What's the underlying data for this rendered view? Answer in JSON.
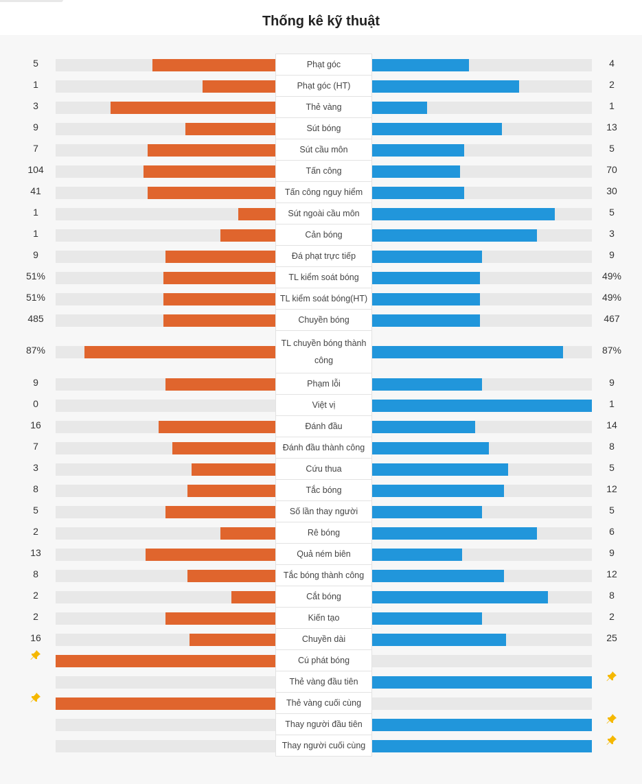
{
  "page": {
    "title": "Thống kê kỹ thuật",
    "colors": {
      "home": "#e0652d",
      "away": "#2196db",
      "track": "#e8e8e8",
      "pin": "#f5b800"
    }
  },
  "stats": [
    {
      "label": "Phạt góc",
      "home": "5",
      "away": "4",
      "home_share": 0.56,
      "away_share": 0.44
    },
    {
      "label": "Phạt góc (HT)",
      "home": "1",
      "away": "2",
      "home_share": 0.33,
      "away_share": 0.67
    },
    {
      "label": "Thẻ vàng",
      "home": "3",
      "away": "1",
      "home_share": 0.75,
      "away_share": 0.25
    },
    {
      "label": "Sút bóng",
      "home": "9",
      "away": "13",
      "home_share": 0.41,
      "away_share": 0.59
    },
    {
      "label": "Sút cầu môn",
      "home": "7",
      "away": "5",
      "home_share": 0.58,
      "away_share": 0.42
    },
    {
      "label": "Tấn công",
      "home": "104",
      "away": "70",
      "home_share": 0.6,
      "away_share": 0.4
    },
    {
      "label": "Tấn công nguy hiểm",
      "home": "41",
      "away": "30",
      "home_share": 0.58,
      "away_share": 0.42
    },
    {
      "label": "Sút ngoài cầu môn",
      "home": "1",
      "away": "5",
      "home_share": 0.17,
      "away_share": 0.83
    },
    {
      "label": "Cản bóng",
      "home": "1",
      "away": "3",
      "home_share": 0.25,
      "away_share": 0.75
    },
    {
      "label": "Đá phạt trực tiếp",
      "home": "9",
      "away": "9",
      "home_share": 0.5,
      "away_share": 0.5
    },
    {
      "label": "TL kiểm soát bóng",
      "home": "51%",
      "away": "49%",
      "home_share": 0.51,
      "away_share": 0.49
    },
    {
      "label": "TL kiểm soát bóng(HT)",
      "home": "51%",
      "away": "49%",
      "home_share": 0.51,
      "away_share": 0.49
    },
    {
      "label": "Chuyền bóng",
      "home": "485",
      "away": "467",
      "home_share": 0.51,
      "away_share": 0.49
    },
    {
      "label": "TL chuyền bóng thành công",
      "home": "87%",
      "away": "87%",
      "home_share": 0.87,
      "away_share": 0.87,
      "tall": true
    },
    {
      "label": "Phạm lỗi",
      "home": "9",
      "away": "9",
      "home_share": 0.5,
      "away_share": 0.5
    },
    {
      "label": "Việt vị",
      "home": "0",
      "away": "1",
      "home_share": 0.0,
      "away_share": 1.0
    },
    {
      "label": "Đánh đầu",
      "home": "16",
      "away": "14",
      "home_share": 0.53,
      "away_share": 0.47
    },
    {
      "label": "Đánh đầu thành công",
      "home": "7",
      "away": "8",
      "home_share": 0.47,
      "away_share": 0.53
    },
    {
      "label": "Cứu thua",
      "home": "3",
      "away": "5",
      "home_share": 0.38,
      "away_share": 0.62
    },
    {
      "label": "Tắc bóng",
      "home": "8",
      "away": "12",
      "home_share": 0.4,
      "away_share": 0.6
    },
    {
      "label": "Số lần thay người",
      "home": "5",
      "away": "5",
      "home_share": 0.5,
      "away_share": 0.5
    },
    {
      "label": "Rê bóng",
      "home": "2",
      "away": "6",
      "home_share": 0.25,
      "away_share": 0.75
    },
    {
      "label": "Quả ném biên",
      "home": "13",
      "away": "9",
      "home_share": 0.59,
      "away_share": 0.41
    },
    {
      "label": "Tắc bóng thành công",
      "home": "8",
      "away": "12",
      "home_share": 0.4,
      "away_share": 0.6
    },
    {
      "label": "Cắt bóng",
      "home": "2",
      "away": "8",
      "home_share": 0.2,
      "away_share": 0.8
    },
    {
      "label": "Kiến tạo",
      "home": "2",
      "away": "2",
      "home_share": 0.5,
      "away_share": 0.5
    },
    {
      "label": "Chuyền dài",
      "home": "16",
      "away": "25",
      "home_share": 0.39,
      "away_share": 0.61
    },
    {
      "label": "Cú phát bóng",
      "home": "",
      "away": "",
      "home_share": 1.0,
      "away_share": 0.0,
      "home_icon": "pin-icon"
    },
    {
      "label": "Thẻ vàng đầu tiên",
      "home": "",
      "away": "",
      "home_share": 0.0,
      "away_share": 1.0,
      "away_icon": "pin-icon"
    },
    {
      "label": "Thẻ vàng cuối cùng",
      "home": "",
      "away": "",
      "home_share": 1.0,
      "away_share": 0.0,
      "home_icon": "pin-icon"
    },
    {
      "label": "Thay người đầu tiên",
      "home": "",
      "away": "",
      "home_share": 0.0,
      "away_share": 1.0,
      "away_icon": "pin-icon"
    },
    {
      "label": "Thay người cuối cùng",
      "home": "",
      "away": "",
      "home_share": 0.0,
      "away_share": 1.0,
      "away_icon": "pin-icon"
    }
  ]
}
